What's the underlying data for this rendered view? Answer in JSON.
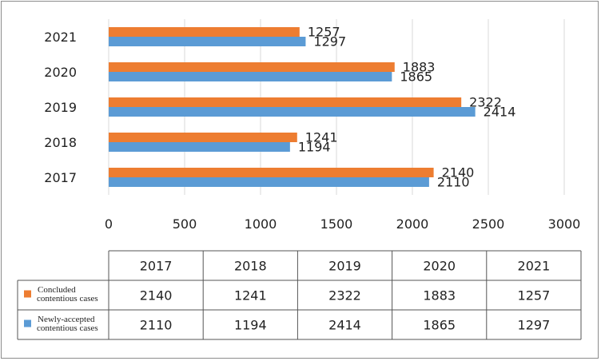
{
  "chart_data": {
    "type": "bar",
    "orientation": "horizontal",
    "categories": [
      "2017",
      "2018",
      "2019",
      "2020",
      "2021"
    ],
    "series": [
      {
        "name": "Concluded contentious cases",
        "name_lines": [
          "Concluded",
          "contentious cases"
        ],
        "color": "#ED7D31",
        "values": [
          2140,
          1241,
          2322,
          1883,
          1257
        ]
      },
      {
        "name": "Newly-accepted contentious cases",
        "name_lines": [
          "Newly-accepted",
          "contentious cases"
        ],
        "color": "#5B9BD5",
        "values": [
          2110,
          1194,
          2414,
          1865,
          1297
        ]
      }
    ],
    "xlim": [
      0,
      3000
    ],
    "xticks": [
      "0",
      "500",
      "1000",
      "1500",
      "2000",
      "2500",
      "3000"
    ],
    "title": "",
    "xlabel": "",
    "ylabel": "",
    "grid": "vertical",
    "data_table": true
  }
}
